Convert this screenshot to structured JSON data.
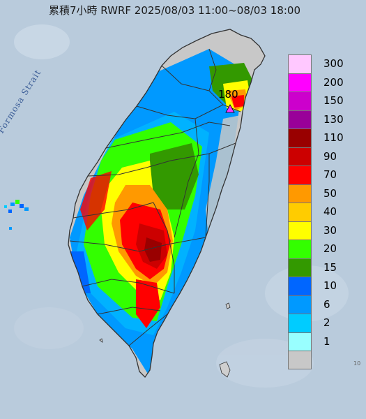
{
  "title": "累積7小時 RWRF 2025/08/03 11:00~08/03 18:00",
  "strait_label": "Formosa Strait",
  "peak_marker": {
    "value_label": "180",
    "color": "#ff33ff"
  },
  "legend": {
    "items": [
      {
        "label": "300",
        "color": "#ffc8ff"
      },
      {
        "label": "200",
        "color": "#ff00ff"
      },
      {
        "label": "150",
        "color": "#cc00cc"
      },
      {
        "label": "130",
        "color": "#990099"
      },
      {
        "label": "110",
        "color": "#990000"
      },
      {
        "label": "90",
        "color": "#cc0000"
      },
      {
        "label": "70",
        "color": "#ff0000"
      },
      {
        "label": "50",
        "color": "#ff9900"
      },
      {
        "label": "40",
        "color": "#ffcc00"
      },
      {
        "label": "30",
        "color": "#ffff00"
      },
      {
        "label": "20",
        "color": "#33ff00"
      },
      {
        "label": "15",
        "color": "#339900"
      },
      {
        "label": "10",
        "color": "#0066ff"
      },
      {
        "label": "6",
        "color": "#0099ff"
      },
      {
        "label": "2",
        "color": "#00ccff"
      },
      {
        "label": "1",
        "color": "#99ffff"
      },
      {
        "label": "",
        "color": "#c8c8c8"
      }
    ]
  },
  "colors": {
    "sea": "#b9cbdc",
    "no_rain_land": "#c8c8c8",
    "border": "#333333"
  },
  "corner_fragment": "10"
}
